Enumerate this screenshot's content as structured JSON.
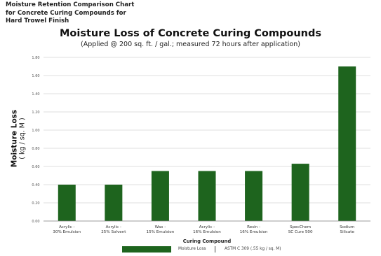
{
  "header": {
    "line1": "Moisture Retention Comparison Chart",
    "line2": "for Concrete Curing Compounds for",
    "line3": "Hard Trowel Finish"
  },
  "legend": {
    "series_label": "Moisture Loss",
    "standard_label": "ASTM C 309 (.55 kg / sq. M)",
    "color": "#1e641e"
  },
  "chart_data": {
    "type": "bar",
    "title": "Moisture Loss of Concrete Curing Compounds",
    "subtitle": "(Applied @ 200 sq. ft. / gal.; measured 72 hours after application)",
    "xlabel": "Curing Compound",
    "ylabel": "Moisture Loss",
    "ylabel_unit": "( kg / sq. M )",
    "ylim": [
      0,
      1.8
    ],
    "yticks": [
      "0.00",
      "0.20",
      "0.40",
      "0.60",
      "0.80",
      "1.00",
      "1.20",
      "1.40",
      "1.60",
      "1.80"
    ],
    "grid": true,
    "categories": [
      [
        "Acrylic -",
        "30% Emulsion"
      ],
      [
        "Acrylic -",
        "25% Solvent"
      ],
      [
        "Wax -",
        "15% Emulsion"
      ],
      [
        "Acrylic -",
        "16% Emulsion"
      ],
      [
        "Resin -",
        "16% Emulsion"
      ],
      [
        "SpecChem",
        "SC Cure 500"
      ],
      [
        "Sodium",
        "Silicate"
      ]
    ],
    "series": [
      {
        "name": "Moisture Loss",
        "values": [
          0.4,
          0.4,
          0.55,
          0.55,
          0.55,
          0.63,
          1.7
        ],
        "color": "#1e641e"
      }
    ]
  }
}
